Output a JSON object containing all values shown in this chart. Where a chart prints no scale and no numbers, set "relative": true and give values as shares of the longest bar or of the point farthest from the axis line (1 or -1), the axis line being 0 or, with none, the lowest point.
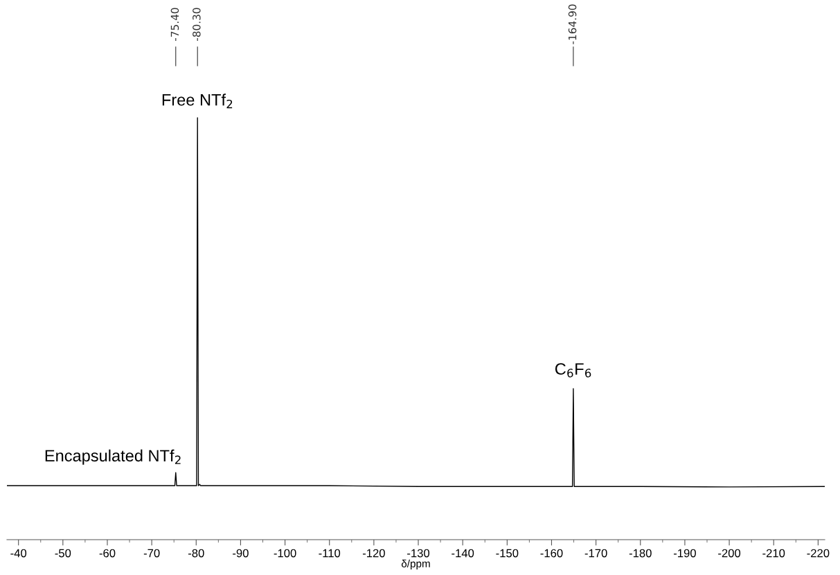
{
  "chart_data": {
    "type": "line",
    "relative": true,
    "xlabel": "δ/ppm",
    "xlim": [
      -37.4,
      -221.5
    ],
    "xticks": [
      -40,
      {
        "value": -45,
        "label": null
      },
      -50,
      {
        "value": -55,
        "label": null
      },
      -60,
      {
        "value": -65,
        "label": null
      },
      -70,
      {
        "value": -75,
        "label": null
      },
      -80,
      {
        "value": -85,
        "label": null
      },
      -90,
      {
        "value": -95,
        "label": null
      },
      -100,
      {
        "value": -105,
        "label": null
      },
      -110,
      {
        "value": -115,
        "label": null
      },
      -120,
      {
        "value": -125,
        "label": null
      },
      -130,
      {
        "value": -135,
        "label": null
      },
      -140,
      {
        "value": -145,
        "label": null
      },
      -150,
      {
        "value": -155,
        "label": null
      },
      -160,
      {
        "value": -165,
        "label": null
      },
      -170,
      {
        "value": -175,
        "label": null
      },
      -180,
      {
        "value": -185,
        "label": null
      },
      -190,
      {
        "value": -195,
        "label": null
      },
      -200,
      {
        "value": -205,
        "label": null
      },
      -210,
      {
        "value": -215,
        "label": null
      },
      -220
    ],
    "series": [
      {
        "color": "#000000",
        "x": [
          -37.4,
          -60,
          -75.2,
          -75.4,
          -75.6,
          -80.1,
          -80.3,
          -80.5,
          -80.8,
          -81.0,
          -110,
          -130,
          -164.7,
          -164.9,
          -165.1,
          -180,
          -200,
          -221.5
        ],
        "values": [
          0.128,
          0.128,
          0.128,
          0.159,
          0.128,
          0.128,
          1.0,
          0.128,
          0.131,
          0.128,
          0.128,
          0.126,
          0.126,
          0.358,
          0.126,
          0.126,
          0.125,
          0.126
        ]
      }
    ],
    "annotations": [
      {
        "text": "-75.40",
        "x": -75.4
      },
      {
        "text": "-80.30",
        "x": -80.3
      },
      {
        "text": "-164.90",
        "x": -164.9
      },
      {
        "text": "Free NTf$_{2}$",
        "x": -80.3,
        "y": 1.0
      },
      {
        "text": "Encapsulated NTf$_{2}$",
        "x": -75.4,
        "y": 0.159
      },
      {
        "text": "C$_{6}$F$_{6}$",
        "x": -164.9,
        "y": 0.358
      }
    ],
    "grid": false,
    "marker": "none",
    "line_style": "solid"
  }
}
